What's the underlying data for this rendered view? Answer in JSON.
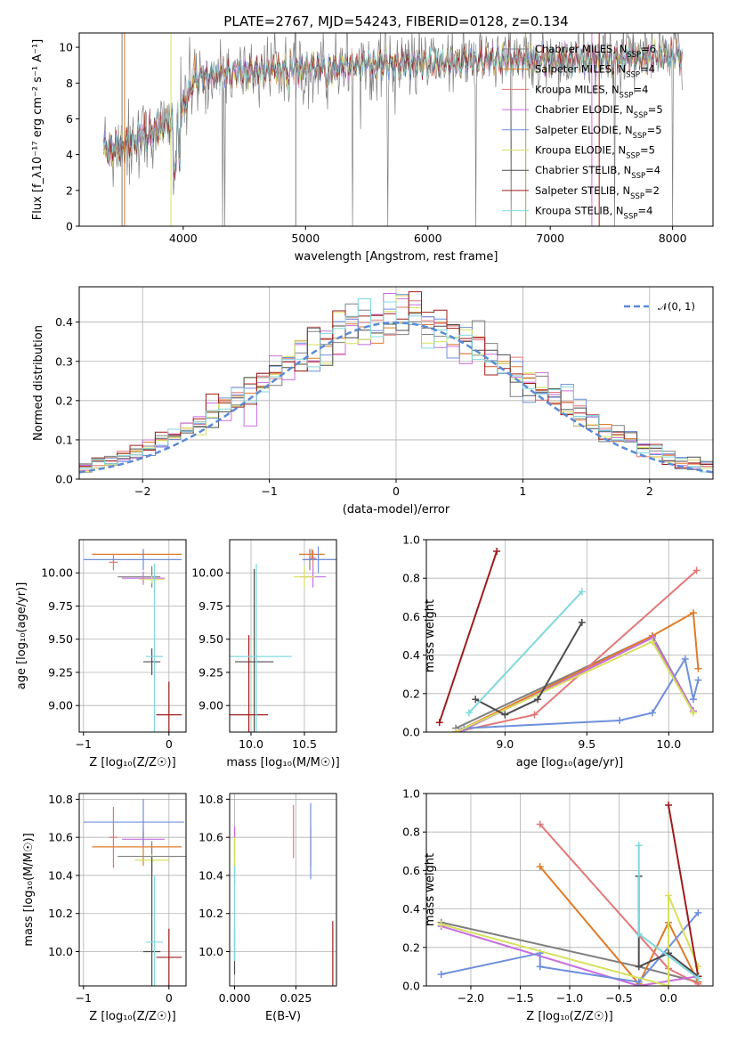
{
  "colors": [
    "#808080",
    "#e07b28",
    "#e37777",
    "#c86ede",
    "#6f8fdc",
    "#d6e05c",
    "#4d4d4d",
    "#a01c1c",
    "#80d8dc"
  ],
  "chart_data": [
    {
      "id": "spectrum",
      "type": "line",
      "title": "PLATE=2767, MJD=54243, FIBERID=0128, z=0.134",
      "xlabel": "wavelength [Angstrom, rest frame]",
      "ylabel": "Flux [f_λ10⁻¹⁷ erg cm⁻² s⁻¹ A⁻¹]",
      "xlim": [
        3150,
        8330
      ],
      "ylim": [
        0,
        10.8
      ],
      "xticks": [
        "4000",
        "5000",
        "6000",
        "7000",
        "8000"
      ],
      "yticks": [
        "0",
        "2",
        "4",
        "6",
        "8",
        "10"
      ],
      "legend_position": "right",
      "series": [
        {
          "name": "Chabrier MILES, N_SSP=6"
        },
        {
          "name": "Salpeter MILES, N_SSP=4"
        },
        {
          "name": "Kroupa MILES, N_SSP=4"
        },
        {
          "name": "Chabrier ELODIE, N_SSP=5"
        },
        {
          "name": "Salpeter ELODIE, N_SSP=5"
        },
        {
          "name": "Kroupa ELODIE, N_SSP=5"
        },
        {
          "name": "Chabrier STELIB, N_SSP=4"
        },
        {
          "name": "Salpeter STELIB, N_SSP=2"
        },
        {
          "name": "Kroupa STELIB, N_SSP=4"
        }
      ],
      "continuum": {
        "x": [
          3350,
          3500,
          3700,
          3900,
          4000,
          4100,
          4300,
          4500,
          4800,
          5000,
          5300,
          5600,
          6000,
          6300,
          6600,
          7000,
          7400,
          7800,
          8050
        ],
        "y": [
          4.3,
          4.5,
          5.1,
          5.8,
          6.7,
          8.2,
          8.5,
          8.6,
          8.8,
          8.9,
          9.0,
          9.05,
          9.1,
          9.2,
          9.3,
          9.3,
          9.35,
          9.4,
          9.5
        ]
      }
    },
    {
      "id": "residuals",
      "type": "histogram",
      "xlabel": "(data-model)/error",
      "ylabel": "Normed distribution",
      "xlim": [
        -2.5,
        2.5
      ],
      "ylim": [
        0,
        0.49
      ],
      "xticks": [
        "−2",
        "−1",
        "0",
        "1",
        "2"
      ],
      "yticks": [
        "0.0",
        "0.1",
        "0.2",
        "0.3",
        "0.4"
      ],
      "grid": true,
      "legend_position": "top-right",
      "reference_label": "𝒩(0, 1)",
      "bin_width": 0.1
    },
    {
      "id": "age-vs-Z",
      "type": "errorbar",
      "xlabel": "Z [log₁₀(Z/Z☉)]",
      "ylabel": "age  [log₁₀(age/yr)]",
      "xlim": [
        -1.05,
        0.2
      ],
      "ylim": [
        8.8,
        10.25
      ],
      "xticks": [
        "−1",
        "0"
      ],
      "yticks": [
        "9.00",
        "9.25",
        "9.50",
        "9.75",
        "10.00"
      ],
      "grid": true,
      "points": [
        {
          "x": -0.2,
          "y": 9.97,
          "xerr": [
            0.4,
            0.1
          ],
          "yerr": 0.08
        },
        {
          "x": -0.3,
          "y": 10.14,
          "xerr": [
            0.6,
            0.45
          ],
          "yerr": 0.04
        },
        {
          "x": -0.65,
          "y": 10.08,
          "xerr": 0.05,
          "yerr": 0.06
        },
        {
          "x": -0.3,
          "y": 9.96,
          "xerr": [
            0.25,
            0.25
          ],
          "yerr": 0.05
        },
        {
          "x": -0.3,
          "y": 10.1,
          "xerr": [
            0.7,
            0.45
          ],
          "yerr": 0.08
        },
        {
          "x": -0.2,
          "y": 9.95,
          "xerr": 0.15,
          "yerr": 0.03
        },
        {
          "x": -0.2,
          "y": 9.33,
          "xerr": 0.1,
          "yerr": 0.1
        },
        {
          "x": 0.0,
          "y": 8.93,
          "xerr": 0.15,
          "yerr": 0.25
        },
        {
          "x": -0.17,
          "y": 9.37,
          "xerr": 0.1,
          "yerr": 0.7
        }
      ]
    },
    {
      "id": "age-vs-mass",
      "type": "errorbar",
      "xlabel": "mass [log₁₀(M/M☉)]",
      "ylabel": "",
      "xlim": [
        9.8,
        10.8
      ],
      "ylim": [
        8.8,
        10.25
      ],
      "xticks": [
        "10.0",
        "10.5"
      ],
      "yticks": [
        "9.00",
        "9.25",
        "9.50",
        "9.75",
        "10.00"
      ],
      "grid": true,
      "points": [
        {
          "x": 10.55,
          "y": 10.1,
          "xerr": [
            0.05,
            0.25
          ],
          "yerr": 0.08
        },
        {
          "x": 10.57,
          "y": 10.14,
          "xerr": 0.12,
          "yerr": 0.04
        },
        {
          "x": 10.58,
          "y": 10.11,
          "xerr": 0.03,
          "yerr": 0.06
        },
        {
          "x": 10.58,
          "y": 9.97,
          "xerr": 0.12,
          "yerr": 0.08
        },
        {
          "x": 10.63,
          "y": 10.1,
          "xerr": 0.15,
          "yerr": 0.1
        },
        {
          "x": 10.5,
          "y": 9.97,
          "xerr": 0.1,
          "yerr": 0.08
        },
        {
          "x": 10.03,
          "y": 9.33,
          "xerr": 0.18,
          "yerr": 0.7
        },
        {
          "x": 9.98,
          "y": 8.93,
          "xerr": 0.18,
          "yerr": 0.6
        },
        {
          "x": 10.05,
          "y": 9.37,
          "xerr": 0.33,
          "yerr": 0.7
        }
      ]
    },
    {
      "id": "weight-vs-age",
      "type": "line",
      "xlabel": "age  [log₁₀(age/yr)]",
      "ylabel": "mass weight",
      "xlim": [
        8.52,
        10.27
      ],
      "ylim": [
        0,
        1.0
      ],
      "xticks": [
        "9.0",
        "9.5",
        "10.0"
      ],
      "yticks": [
        "0.0",
        "0.2",
        "0.4",
        "0.6",
        "0.8",
        "1.0"
      ],
      "grid": true,
      "series": [
        {
          "x": [
            8.7,
            9.9,
            10.15
          ],
          "y": [
            0.02,
            0.5,
            0.11
          ]
        },
        {
          "x": [
            8.7,
            9.9,
            10.15,
            10.18
          ],
          "y": [
            0.0,
            0.5,
            0.62,
            0.33
          ]
        },
        {
          "x": [
            8.75,
            9.18,
            10.17
          ],
          "y": [
            0.01,
            0.09,
            0.84
          ]
        },
        {
          "x": [
            8.72,
            9.9,
            10.15
          ],
          "y": [
            0.0,
            0.49,
            0.11
          ]
        },
        {
          "x": [
            8.75,
            9.7,
            9.9,
            10.1,
            10.15,
            10.18
          ],
          "y": [
            0.02,
            0.06,
            0.1,
            0.38,
            0.17,
            0.27
          ]
        },
        {
          "x": [
            8.7,
            9.9,
            10.15
          ],
          "y": [
            0.0,
            0.47,
            0.1
          ]
        },
        {
          "x": [
            8.82,
            9.0,
            9.2,
            9.47
          ],
          "y": [
            0.17,
            0.09,
            0.17,
            0.57
          ]
        },
        {
          "x": [
            8.6,
            8.95
          ],
          "y": [
            0.05,
            0.94
          ]
        },
        {
          "x": [
            8.78,
            9.47
          ],
          "y": [
            0.1,
            0.73
          ]
        }
      ]
    },
    {
      "id": "mass-vs-Z",
      "type": "errorbar",
      "xlabel": "Z [log₁₀(Z/Z☉)]",
      "ylabel": "mass [log₁₀(M/M☉)]",
      "xlim": [
        -1.05,
        0.2
      ],
      "ylim": [
        9.82,
        10.83
      ],
      "xticks": [
        "−1",
        "0"
      ],
      "yticks": [
        "10.0",
        "10.2",
        "10.4",
        "10.6",
        "10.8"
      ],
      "grid": true,
      "points": [
        {
          "x": -0.2,
          "y": 10.5,
          "xerr": 0.4,
          "yerr": 0.08
        },
        {
          "x": -0.3,
          "y": 10.55,
          "xerr": [
            0.6,
            0.45
          ],
          "yerr": 0.1
        },
        {
          "x": -0.65,
          "y": 10.6,
          "xerr": 0.05,
          "yerr": 0.16
        },
        {
          "x": -0.3,
          "y": 10.59,
          "xerr": 0.25,
          "yerr": 0.04
        },
        {
          "x": -0.3,
          "y": 10.68,
          "xerr": [
            0.7,
            0.48
          ],
          "yerr": 0.12
        },
        {
          "x": -0.2,
          "y": 10.48,
          "xerr": 0.2,
          "yerr": 0.03
        },
        {
          "x": -0.2,
          "y": 10.0,
          "xerr": 0.1,
          "yerr": 0.5
        },
        {
          "x": 0.0,
          "y": 9.97,
          "xerr": 0.15,
          "yerr": 0.15
        },
        {
          "x": -0.17,
          "y": 10.05,
          "xerr": 0.1,
          "yerr": 0.35
        }
      ]
    },
    {
      "id": "mass-vs-EBV",
      "type": "errorbar",
      "xlabel": "E(B-V)",
      "ylabel": "",
      "xlim": [
        -0.002,
        0.0415
      ],
      "ylim": [
        9.82,
        10.83
      ],
      "xticks": [
        "0.000",
        "0.025"
      ],
      "yticks": [
        "10.0",
        "10.2",
        "10.4",
        "10.6",
        "10.8"
      ],
      "grid": true,
      "points": [
        {
          "x": 0.0,
          "y": 10.5,
          "yerr": 0.15
        },
        {
          "x": 0.031,
          "y": 10.55,
          "yerr": 0.1
        },
        {
          "x": 0.024,
          "y": 10.63,
          "yerr": 0.14
        },
        {
          "x": 0.0,
          "y": 10.58,
          "yerr": 0.08
        },
        {
          "x": 0.031,
          "y": 10.58,
          "yerr": 0.2
        },
        {
          "x": 0.0,
          "y": 10.5,
          "yerr": 0.1
        },
        {
          "x": 0.0,
          "y": 10.0,
          "yerr": 0.12
        },
        {
          "x": 0.04,
          "y": 9.99,
          "yerr": 0.17
        },
        {
          "x": 0.0,
          "y": 10.2,
          "yerr": 0.25
        }
      ]
    },
    {
      "id": "weight-vs-Z",
      "type": "line",
      "xlabel": "Z [log₁₀(Z/Z☉)]",
      "ylabel": "mass weight",
      "xlim": [
        -2.45,
        0.45
      ],
      "ylim": [
        0,
        1.0
      ],
      "xticks": [
        "−2.0",
        "−1.5",
        "−1.0",
        "−0.5",
        "0.0"
      ],
      "yticks": [
        "0.0",
        "0.2",
        "0.4",
        "0.6",
        "0.8",
        "1.0"
      ],
      "grid": true,
      "series": [
        {
          "x": [
            -2.3,
            -0.3,
            0.3
          ],
          "y": [
            0.33,
            0.1,
            0.02
          ]
        },
        {
          "x": [
            -1.3,
            -0.3,
            0.0,
            0.3
          ],
          "y": [
            0.62,
            0.01,
            0.33,
            0.02
          ]
        },
        {
          "x": [
            -1.3,
            0.0,
            0.3
          ],
          "y": [
            0.84,
            0.09,
            0.01
          ]
        },
        {
          "x": [
            -2.3,
            -0.3,
            0.3
          ],
          "y": [
            0.31,
            0.0,
            0.05
          ]
        },
        {
          "x": [
            -2.3,
            -1.3,
            -1.3,
            -0.3,
            0.3
          ],
          "y": [
            0.06,
            0.17,
            0.1,
            0.02,
            0.38
          ]
        },
        {
          "x": [
            -2.3,
            0.0,
            0.0,
            0.3
          ],
          "y": [
            0.32,
            0.0,
            0.47,
            0.1
          ]
        },
        {
          "x": [
            -0.3,
            -0.3,
            0.0,
            0.3
          ],
          "y": [
            0.57,
            0.1,
            0.17,
            0.05
          ]
        },
        {
          "x": [
            0.0,
            0.3
          ],
          "y": [
            0.94,
            0.05
          ]
        },
        {
          "x": [
            -0.3,
            -0.3,
            0.3
          ],
          "y": [
            0.73,
            0.27,
            0.04
          ]
        }
      ]
    }
  ]
}
